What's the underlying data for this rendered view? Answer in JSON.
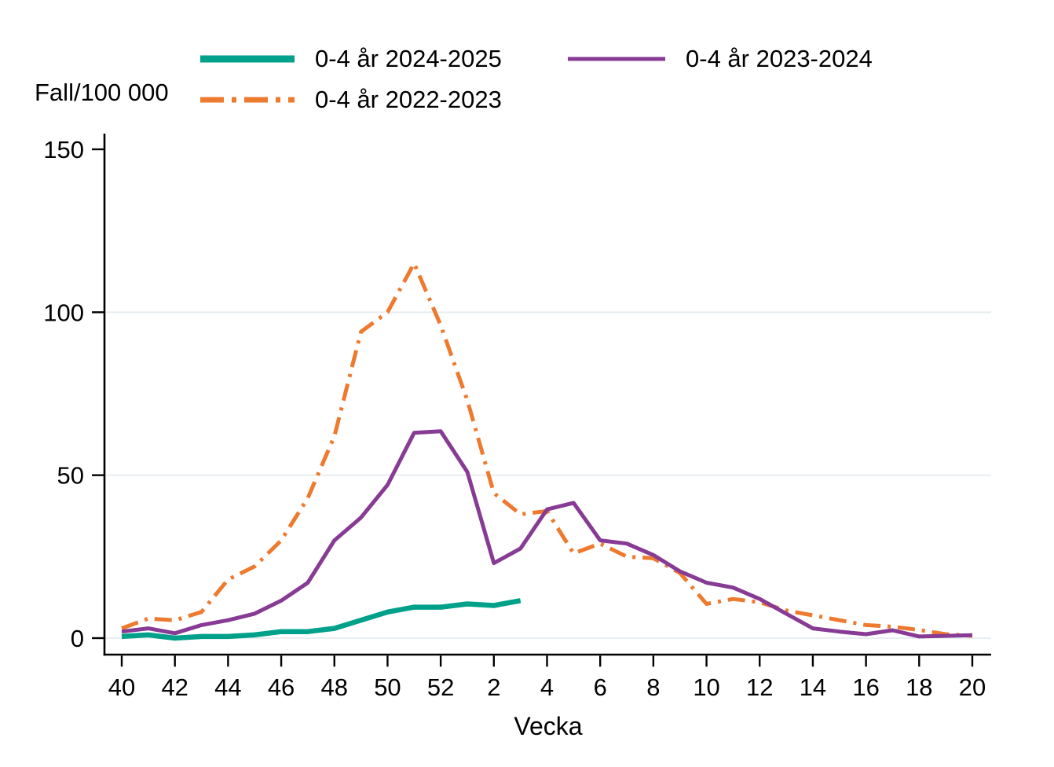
{
  "figure": {
    "y_axis_title": "Fall/100 000",
    "x_axis_title": "Vecka"
  },
  "legend": {
    "items": [
      {
        "label": "0-4 år 2024-2025"
      },
      {
        "label": "0-4 år 2023-2024"
      },
      {
        "label": "0-4 år 2022-2023"
      }
    ]
  },
  "chart_data": {
    "type": "line",
    "title": "",
    "xlabel": "Vecka",
    "ylabel": "Fall/100 000",
    "weeks": [
      "40",
      "41",
      "42",
      "43",
      "44",
      "45",
      "46",
      "47",
      "48",
      "49",
      "50",
      "51",
      "52",
      "1",
      "2",
      "3",
      "4",
      "5",
      "6",
      "7",
      "8",
      "9",
      "10",
      "11",
      "12",
      "13",
      "14",
      "15",
      "16",
      "17",
      "18",
      "19",
      "20"
    ],
    "x_tick_labels": [
      "40",
      "42",
      "44",
      "46",
      "48",
      "50",
      "52",
      "2",
      "4",
      "6",
      "8",
      "10",
      "12",
      "14",
      "16",
      "18",
      "20"
    ],
    "ylim": [
      0,
      150
    ],
    "y_ticks": [
      0,
      50,
      100,
      150
    ],
    "grid_values": [
      0,
      50,
      100
    ],
    "legend_position": "top",
    "colors": {
      "grid": "#e8eef1",
      "axis": "#000000",
      "text": "#000000",
      "background": "#ffffff"
    },
    "series": [
      {
        "name": "0-4 år 2024-2025",
        "color": "#00a18a",
        "dash": "solid",
        "width": 6.5,
        "legend_stroke": 9,
        "values": [
          0.5,
          1,
          0,
          0.5,
          0.5,
          1,
          2,
          2,
          3,
          5.5,
          8,
          9.5,
          9.5,
          10.5,
          10,
          11.5
        ]
      },
      {
        "name": "0-4 år 2023-2024",
        "color": "#873b94",
        "dash": "solid",
        "width": 5,
        "legend_stroke": 5,
        "values": [
          2,
          3,
          1.5,
          4,
          5.5,
          7.5,
          11.5,
          17,
          30,
          37,
          47,
          63,
          63.5,
          51,
          23,
          27.5,
          39.5,
          41.5,
          30,
          29,
          25.5,
          20.5,
          17,
          15.5,
          12,
          7.5,
          3,
          2,
          1.2,
          2.4,
          0.5,
          0.7,
          0.9
        ]
      },
      {
        "name": "0-4 år 2022-2023",
        "color": "#ee7a2f",
        "dash": "dashdot",
        "width": 5,
        "legend_stroke": 7,
        "values": [
          3,
          6,
          5.5,
          8,
          18,
          22,
          30,
          43,
          62,
          94,
          100,
          115,
          96,
          73,
          44.5,
          38,
          39,
          26,
          29,
          25,
          24.5,
          20,
          10.5,
          12,
          11,
          8.5,
          7,
          5.5,
          4,
          3.5,
          2.5,
          1.2,
          0.7
        ]
      }
    ]
  }
}
